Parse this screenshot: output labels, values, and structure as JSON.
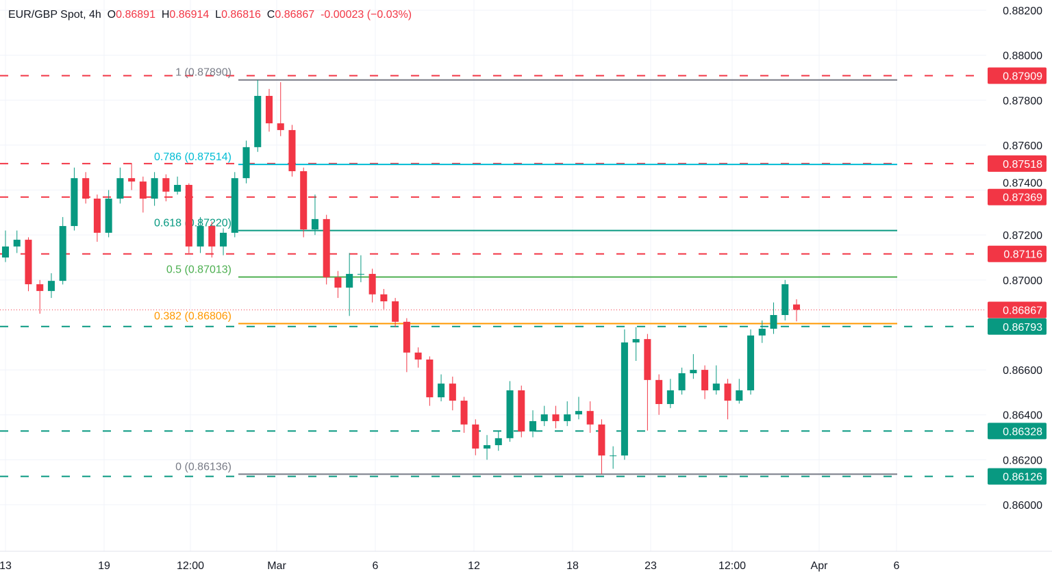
{
  "header": {
    "symbol": "EUR/GBP Spot, 4h",
    "open_label": "O",
    "open": "0.86891",
    "high_label": "H",
    "high": "0.86914",
    "low_label": "L",
    "low": "0.86816",
    "close_label": "C",
    "close": "0.86867",
    "change": "-0.00023 (−0.03%)"
  },
  "colors": {
    "up": "#089981",
    "down": "#f23645",
    "grid": "#f0f3fa",
    "text": "#131722"
  },
  "chart_data": {
    "type": "candlestick",
    "title": "EUR/GBP Spot, 4h",
    "ylim": [
      0.8592,
      0.8825
    ],
    "y_ticks": [
      "0.88200",
      "0.88000",
      "0.87800",
      "0.87600",
      "0.87400",
      "0.87200",
      "0.87000",
      "0.86600",
      "0.86400",
      "0.86200",
      "0.86000"
    ],
    "x_ticks": [
      "13",
      "19",
      "12:00",
      "Mar",
      "6",
      "12",
      "18",
      "23",
      "12:00",
      "Apr",
      "6"
    ],
    "grid": true,
    "candles": [
      [
        0.871,
        0.8722,
        0.8708,
        0.87149
      ],
      [
        0.87149,
        0.8722,
        0.8712,
        0.87179
      ],
      [
        0.87179,
        0.8719,
        0.8695,
        0.86981
      ],
      [
        0.86981,
        0.87,
        0.8685,
        0.86951
      ],
      [
        0.86951,
        0.8703,
        0.8692,
        0.86996
      ],
      [
        0.86996,
        0.8728,
        0.8698,
        0.8724
      ],
      [
        0.8724,
        0.875,
        0.8722,
        0.87453
      ],
      [
        0.87453,
        0.8748,
        0.8734,
        0.87362
      ],
      [
        0.87362,
        0.8738,
        0.8717,
        0.8721
      ],
      [
        0.8721,
        0.874,
        0.8719,
        0.87362
      ],
      [
        0.87362,
        0.875,
        0.8734,
        0.87453
      ],
      [
        0.87453,
        0.8752,
        0.874,
        0.87438
      ],
      [
        0.87438,
        0.8746,
        0.873,
        0.87362
      ],
      [
        0.87362,
        0.8748,
        0.8733,
        0.87453
      ],
      [
        0.87453,
        0.8747,
        0.8735,
        0.87393
      ],
      [
        0.87393,
        0.8746,
        0.8738,
        0.87423
      ],
      [
        0.87423,
        0.8743,
        0.8712,
        0.87149
      ],
      [
        0.87149,
        0.8728,
        0.8712,
        0.8724
      ],
      [
        0.8724,
        0.8726,
        0.871,
        0.87149
      ],
      [
        0.87149,
        0.8723,
        0.8711,
        0.8721
      ],
      [
        0.8721,
        0.8748,
        0.8719,
        0.87453
      ],
      [
        0.87453,
        0.8762,
        0.8743,
        0.87591
      ],
      [
        0.87591,
        0.8789,
        0.8757,
        0.87819
      ],
      [
        0.87819,
        0.8785,
        0.8766,
        0.87697
      ],
      [
        0.87697,
        0.8788,
        0.8764,
        0.87667
      ],
      [
        0.87667,
        0.8769,
        0.8746,
        0.87484
      ],
      [
        0.87484,
        0.875,
        0.8719,
        0.87225
      ],
      [
        0.87225,
        0.8738,
        0.872,
        0.87271
      ],
      [
        0.87271,
        0.8729,
        0.8698,
        0.87012
      ],
      [
        0.87012,
        0.8704,
        0.8692,
        0.86966
      ],
      [
        0.86966,
        0.8712,
        0.8684,
        0.87027
      ],
      [
        0.87027,
        0.8711,
        0.8699,
        0.87027
      ],
      [
        0.87027,
        0.8705,
        0.869,
        0.86936
      ],
      [
        0.86936,
        0.8696,
        0.8687,
        0.86905
      ],
      [
        0.86905,
        0.8692,
        0.8679,
        0.86814
      ],
      [
        0.86814,
        0.8683,
        0.8659,
        0.86677
      ],
      [
        0.86677,
        0.867,
        0.8661,
        0.86646
      ],
      [
        0.86646,
        0.8666,
        0.8644,
        0.86478
      ],
      [
        0.86478,
        0.8658,
        0.8646,
        0.86539
      ],
      [
        0.86539,
        0.8657,
        0.8642,
        0.86463
      ],
      [
        0.86463,
        0.8648,
        0.8632,
        0.86357
      ],
      [
        0.86357,
        0.8638,
        0.8622,
        0.8625
      ],
      [
        0.8625,
        0.8631,
        0.862,
        0.86265
      ],
      [
        0.86265,
        0.8633,
        0.8624,
        0.86296
      ],
      [
        0.86296,
        0.8655,
        0.8628,
        0.86509
      ],
      [
        0.86509,
        0.8653,
        0.863,
        0.86326
      ],
      [
        0.86326,
        0.8642,
        0.863,
        0.86372
      ],
      [
        0.86372,
        0.8644,
        0.8635,
        0.86402
      ],
      [
        0.86402,
        0.8644,
        0.8634,
        0.86372
      ],
      [
        0.86372,
        0.8646,
        0.8635,
        0.86402
      ],
      [
        0.86402,
        0.8648,
        0.8638,
        0.86417
      ],
      [
        0.86417,
        0.8646,
        0.8632,
        0.86357
      ],
      [
        0.86357,
        0.8638,
        0.86136,
        0.86219
      ],
      [
        0.86219,
        0.8626,
        0.8616,
        0.86219
      ],
      [
        0.86219,
        0.8678,
        0.862,
        0.86722
      ],
      [
        0.86722,
        0.8679,
        0.8664,
        0.86737
      ],
      [
        0.86737,
        0.8676,
        0.8633,
        0.86555
      ],
      [
        0.86555,
        0.8658,
        0.864,
        0.86448
      ],
      [
        0.86448,
        0.8656,
        0.8643,
        0.86509
      ],
      [
        0.86509,
        0.8661,
        0.8649,
        0.86585
      ],
      [
        0.86585,
        0.8667,
        0.8656,
        0.866
      ],
      [
        0.866,
        0.8662,
        0.8647,
        0.86509
      ],
      [
        0.86509,
        0.8662,
        0.8649,
        0.86539
      ],
      [
        0.86539,
        0.8656,
        0.8638,
        0.86463
      ],
      [
        0.86463,
        0.8656,
        0.8645,
        0.86509
      ],
      [
        0.86509,
        0.8678,
        0.8649,
        0.86753
      ],
      [
        0.86753,
        0.8682,
        0.8672,
        0.86783
      ],
      [
        0.86783,
        0.869,
        0.8676,
        0.86844
      ],
      [
        0.86844,
        0.87,
        0.8682,
        0.86981
      ],
      [
        0.86891,
        0.86914,
        0.86816,
        0.86867
      ]
    ],
    "horizontal_levels": [
      {
        "price": 0.87909,
        "label": "0.87909",
        "color": "#f23645"
      },
      {
        "price": 0.87518,
        "label": "0.87518",
        "color": "#f23645"
      },
      {
        "price": 0.87369,
        "label": "0.87369",
        "color": "#f23645"
      },
      {
        "price": 0.87116,
        "label": "0.87116",
        "color": "#f23645"
      },
      {
        "price": 0.86793,
        "label": "0.86793",
        "color": "#089981"
      },
      {
        "price": 0.86328,
        "label": "0.86328",
        "color": "#089981"
      },
      {
        "price": 0.86126,
        "label": "0.86126",
        "color": "#089981"
      }
    ],
    "current_price": {
      "price": 0.86867,
      "label": "0.86867",
      "color": "#f23645"
    },
    "fibonacci": [
      {
        "level": "1",
        "price": 0.8789,
        "label": "1 (0.87890)",
        "color": "#787b86"
      },
      {
        "level": "0.786",
        "price": 0.87514,
        "label": "0.786 (0.87514)",
        "color": "#00bcd4"
      },
      {
        "level": "0.618",
        "price": 0.8722,
        "label": "0.618 (0.87220)",
        "color": "#089981"
      },
      {
        "level": "0.5",
        "price": 0.87013,
        "label": "0.5 (0.87013)",
        "color": "#4caf50"
      },
      {
        "level": "0.382",
        "price": 0.86806,
        "label": "0.382 (0.86806)",
        "color": "#ff9800"
      },
      {
        "level": "0",
        "price": 0.86136,
        "label": "0 (0.86136)",
        "color": "#787b86"
      }
    ]
  }
}
